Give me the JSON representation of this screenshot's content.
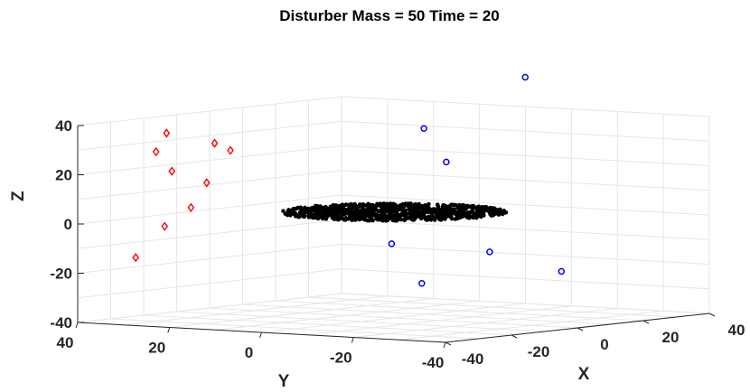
{
  "chart_data": {
    "type": "scatter",
    "title": "Disturber Mass = 50   Time = 20",
    "xlabel": "X",
    "ylabel": "Y",
    "zlabel": "Z",
    "xlim": [
      -40,
      40
    ],
    "ylim": [
      -40,
      40
    ],
    "zlim": [
      -40,
      40
    ],
    "x_ticks": [
      "-40",
      "-20",
      "0",
      "20",
      "40"
    ],
    "y_ticks": [
      "40",
      "20",
      "0",
      "-20",
      "-40"
    ],
    "z_ticks": [
      "40",
      "20",
      "0",
      "-20",
      "-40"
    ],
    "grid": true,
    "series": [
      {
        "marker": "diamond",
        "color": "#ff0000",
        "points": [
          {
            "x": -27,
            "y": 30,
            "z": 36
          },
          {
            "x": -26,
            "y": 33,
            "z": 28
          },
          {
            "x": -24,
            "y": 31,
            "z": 20
          },
          {
            "x": -18,
            "y": 26,
            "z": 31
          },
          {
            "x": -16,
            "y": 24,
            "z": 28
          },
          {
            "x": -19,
            "y": 27,
            "z": 15
          },
          {
            "x": -21,
            "y": 29,
            "z": 5
          },
          {
            "x": -22,
            "y": 34,
            "z": -3
          },
          {
            "x": -28,
            "y": 36,
            "z": -15
          }
        ]
      },
      {
        "marker": "circle",
        "color": "#0000ff",
        "points": [
          {
            "x": 26,
            "y": -10,
            "z": 55
          },
          {
            "x": 12,
            "y": 2,
            "z": 35
          },
          {
            "x": 16,
            "y": 0,
            "z": 21
          },
          {
            "x": 5,
            "y": 4,
            "z": -11
          },
          {
            "x": 18,
            "y": -8,
            "z": -15
          },
          {
            "x": 30,
            "y": -15,
            "z": -24
          },
          {
            "x": 3,
            "y": -4,
            "z": -26
          }
        ]
      },
      {
        "marker": "point",
        "color": "#000000",
        "shape": "disk",
        "center": {
          "x": 0,
          "y": 0,
          "z": 3
        },
        "radius": 20
      }
    ]
  }
}
